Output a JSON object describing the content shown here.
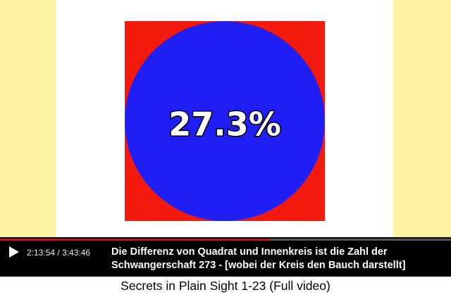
{
  "video": {
    "overlay_text": "27.3%"
  },
  "player": {
    "time": "2:13:54 / 3:43:46",
    "caption": [
      "Die Differenz von Quadrat und Innenkreis ist die Zahl der",
      "Schwangerschaft 273 - [wobei der Kreis den Bauch darstellt]"
    ]
  },
  "title": "Secrets in Plain Sight 1-23 (Full video)"
}
